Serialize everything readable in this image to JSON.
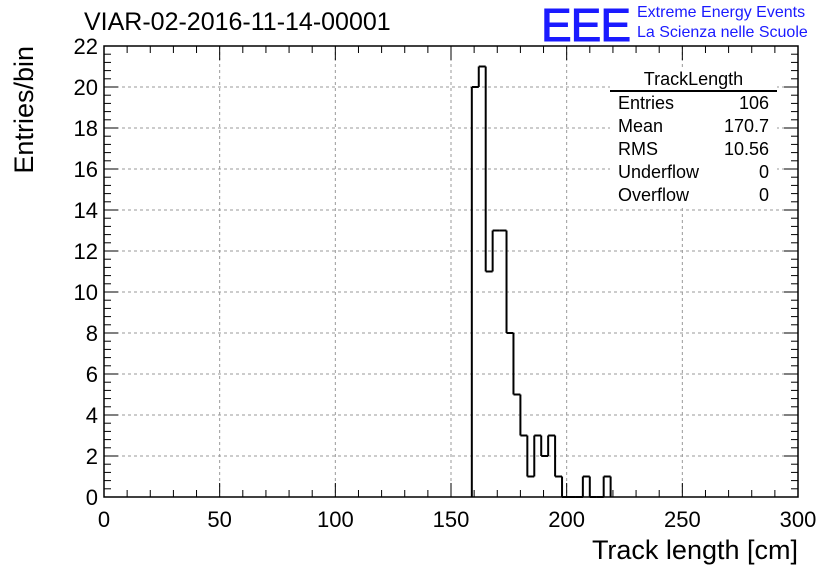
{
  "title": "VIAR-02-2016-11-14-00001",
  "logo": {
    "mark": "EEE",
    "line1": "Extreme Energy Events",
    "line2": "La Scienza nelle Scuole",
    "color": "#1a1aff"
  },
  "stats_box": {
    "title": "TrackLength",
    "rows": [
      {
        "label": "Entries",
        "value": "106"
      },
      {
        "label": "Mean",
        "value": "170.7"
      },
      {
        "label": "RMS",
        "value": "10.56"
      },
      {
        "label": "Underflow",
        "value": "0"
      },
      {
        "label": "Overflow",
        "value": "0"
      }
    ]
  },
  "chart_data": {
    "type": "bar",
    "histogram": true,
    "xlabel": "Track length [cm]",
    "ylabel": "Entries/bin",
    "xlim": [
      0,
      300
    ],
    "ylim": [
      0,
      22
    ],
    "xticks": [
      0,
      50,
      100,
      150,
      200,
      250,
      300
    ],
    "yticks": [
      0,
      2,
      4,
      6,
      8,
      10,
      12,
      14,
      16,
      18,
      20,
      22
    ],
    "grid": true,
    "bin_width": 3,
    "bin_edges_start": 159,
    "values": [
      20,
      21,
      11,
      13,
      13,
      8,
      5,
      3,
      1,
      3,
      2,
      3,
      1,
      0,
      0,
      0,
      1,
      0,
      0,
      1
    ]
  }
}
